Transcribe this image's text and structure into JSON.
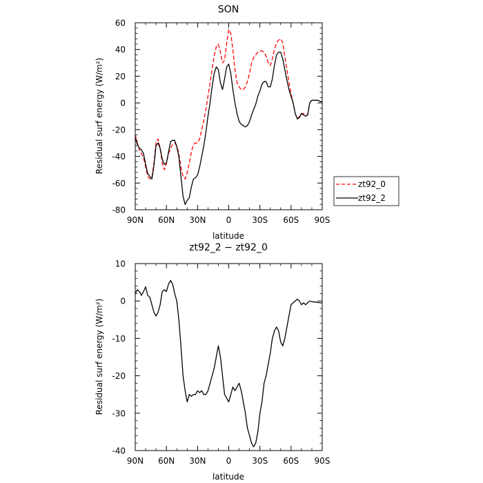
{
  "chart_data": [
    {
      "type": "line",
      "title": "SON",
      "xlabel": "latitude",
      "ylabel": "Residual surf energy (W/m²)",
      "x_ticks": [
        {
          "lat": 90,
          "label": "90N"
        },
        {
          "lat": 60,
          "label": "60N"
        },
        {
          "lat": 30,
          "label": "30N"
        },
        {
          "lat": 0,
          "label": "0"
        },
        {
          "lat": -30,
          "label": "30S"
        },
        {
          "lat": -60,
          "label": "60S"
        },
        {
          "lat": -90,
          "label": "90S"
        }
      ],
      "xlim": [
        90,
        -90
      ],
      "ylim": [
        -80,
        60
      ],
      "y_ticks": [
        60,
        40,
        20,
        0,
        -20,
        -40,
        -60,
        -80
      ],
      "legend_position": "outside-right",
      "series": [
        {
          "name": "zt92_0",
          "color": "#ff0000",
          "dash": "dashed",
          "points": [
            [
              90,
              -24
            ],
            [
              88,
              -30
            ],
            [
              86,
              -35
            ],
            [
              84,
              -38
            ],
            [
              82,
              -41
            ],
            [
              80,
              -48
            ],
            [
              78,
              -55
            ],
            [
              76,
              -57
            ],
            [
              74,
              -56
            ],
            [
              72,
              -45
            ],
            [
              70,
              -30
            ],
            [
              68,
              -27
            ],
            [
              66,
              -34
            ],
            [
              64,
              -45
            ],
            [
              62,
              -50
            ],
            [
              60,
              -45
            ],
            [
              58,
              -38
            ],
            [
              56,
              -34
            ],
            [
              54,
              -31
            ],
            [
              52,
              -30
            ],
            [
              50,
              -32
            ],
            [
              48,
              -38
            ],
            [
              46,
              -48
            ],
            [
              44,
              -55
            ],
            [
              42,
              -57
            ],
            [
              40,
              -52
            ],
            [
              38,
              -45
            ],
            [
              36,
              -37
            ],
            [
              34,
              -31
            ],
            [
              32,
              -30
            ],
            [
              30,
              -30
            ],
            [
              28,
              -27
            ],
            [
              26,
              -20
            ],
            [
              24,
              -13
            ],
            [
              22,
              -5
            ],
            [
              20,
              5
            ],
            [
              18,
              15
            ],
            [
              16,
              25
            ],
            [
              14,
              35
            ],
            [
              12,
              42
            ],
            [
              10,
              44
            ],
            [
              8,
              38
            ],
            [
              6,
              30
            ],
            [
              4,
              32
            ],
            [
              2,
              45
            ],
            [
              0,
              55
            ],
            [
              -2,
              52
            ],
            [
              -4,
              40
            ],
            [
              -6,
              25
            ],
            [
              -8,
              15
            ],
            [
              -10,
              12
            ],
            [
              -12,
              10
            ],
            [
              -14,
              10
            ],
            [
              -16,
              12
            ],
            [
              -18,
              16
            ],
            [
              -20,
              22
            ],
            [
              -22,
              30
            ],
            [
              -24,
              34
            ],
            [
              -26,
              36
            ],
            [
              -28,
              38
            ],
            [
              -30,
              39
            ],
            [
              -32,
              39
            ],
            [
              -34,
              38
            ],
            [
              -36,
              35
            ],
            [
              -38,
              30
            ],
            [
              -40,
              28
            ],
            [
              -42,
              33
            ],
            [
              -44,
              40
            ],
            [
              -46,
              45
            ],
            [
              -48,
              47
            ],
            [
              -50,
              48
            ],
            [
              -52,
              45
            ],
            [
              -54,
              35
            ],
            [
              -56,
              25
            ],
            [
              -58,
              15
            ],
            [
              -60,
              7
            ],
            [
              -62,
              0
            ],
            [
              -64,
              -8
            ],
            [
              -66,
              -12
            ],
            [
              -68,
              -10
            ],
            [
              -70,
              -8
            ],
            [
              -72,
              -8
            ],
            [
              -74,
              -9
            ],
            [
              -76,
              -9
            ],
            [
              -78,
              0
            ],
            [
              -80,
              2
            ],
            [
              -82,
              2
            ],
            [
              -84,
              2
            ],
            [
              -86,
              2
            ],
            [
              -88,
              1
            ],
            [
              -90,
              1
            ]
          ]
        },
        {
          "name": "zt92_2",
          "color": "#000000",
          "dash": "solid",
          "points": [
            [
              90,
              -26
            ],
            [
              88,
              -31
            ],
            [
              86,
              -34
            ],
            [
              84,
              -35
            ],
            [
              82,
              -38
            ],
            [
              80,
              -46
            ],
            [
              78,
              -53
            ],
            [
              76,
              -55
            ],
            [
              74,
              -57
            ],
            [
              72,
              -47
            ],
            [
              70,
              -32
            ],
            [
              68,
              -30
            ],
            [
              66,
              -34
            ],
            [
              64,
              -42
            ],
            [
              62,
              -46
            ],
            [
              60,
              -45
            ],
            [
              58,
              -37
            ],
            [
              56,
              -29
            ],
            [
              54,
              -28
            ],
            [
              52,
              -28
            ],
            [
              50,
              -33
            ],
            [
              48,
              -40
            ],
            [
              46,
              -55
            ],
            [
              44,
              -70
            ],
            [
              42,
              -76
            ],
            [
              40,
              -73
            ],
            [
              38,
              -71
            ],
            [
              36,
              -63
            ],
            [
              34,
              -57
            ],
            [
              32,
              -56
            ],
            [
              30,
              -54
            ],
            [
              28,
              -48
            ],
            [
              26,
              -40
            ],
            [
              24,
              -32
            ],
            [
              22,
              -22
            ],
            [
              20,
              -10
            ],
            [
              18,
              0
            ],
            [
              16,
              12
            ],
            [
              14,
              22
            ],
            [
              12,
              27
            ],
            [
              10,
              25
            ],
            [
              8,
              15
            ],
            [
              6,
              10
            ],
            [
              4,
              18
            ],
            [
              2,
              27
            ],
            [
              0,
              29
            ],
            [
              -2,
              22
            ],
            [
              -4,
              10
            ],
            [
              -6,
              0
            ],
            [
              -8,
              -8
            ],
            [
              -10,
              -14
            ],
            [
              -12,
              -16
            ],
            [
              -14,
              -17
            ],
            [
              -16,
              -18
            ],
            [
              -18,
              -17
            ],
            [
              -20,
              -14
            ],
            [
              -22,
              -9
            ],
            [
              -24,
              -5
            ],
            [
              -26,
              -1
            ],
            [
              -28,
              5
            ],
            [
              -30,
              9
            ],
            [
              -32,
              14
            ],
            [
              -34,
              16
            ],
            [
              -36,
              16
            ],
            [
              -38,
              12
            ],
            [
              -40,
              12
            ],
            [
              -42,
              18
            ],
            [
              -44,
              28
            ],
            [
              -46,
              36
            ],
            [
              -48,
              38
            ],
            [
              -50,
              38
            ],
            [
              -52,
              33
            ],
            [
              -54,
              25
            ],
            [
              -56,
              17
            ],
            [
              -58,
              10
            ],
            [
              -60,
              5
            ],
            [
              -62,
              0
            ],
            [
              -64,
              -8
            ],
            [
              -66,
              -12
            ],
            [
              -68,
              -11
            ],
            [
              -70,
              -8
            ],
            [
              -72,
              -9
            ],
            [
              -74,
              -10
            ],
            [
              -76,
              -9
            ],
            [
              -78,
              0
            ],
            [
              -80,
              2
            ],
            [
              -82,
              2
            ],
            [
              -84,
              2
            ],
            [
              -86,
              2
            ],
            [
              -88,
              1
            ],
            [
              -90,
              1
            ]
          ]
        }
      ]
    },
    {
      "type": "line",
      "title": "zt92_2 − zt92_0",
      "xlabel": "latitude",
      "ylabel": "Residual surf energy (W/m²)",
      "x_ticks": [
        {
          "lat": 90,
          "label": "90N"
        },
        {
          "lat": 60,
          "label": "60N"
        },
        {
          "lat": 30,
          "label": "30N"
        },
        {
          "lat": 0,
          "label": "0"
        },
        {
          "lat": -30,
          "label": "30S"
        },
        {
          "lat": -60,
          "label": "60S"
        },
        {
          "lat": -90,
          "label": "90S"
        }
      ],
      "xlim": [
        90,
        -90
      ],
      "ylim": [
        -40,
        10
      ],
      "y_ticks": [
        10,
        0,
        -10,
        -20,
        -30,
        -40
      ],
      "series": [
        {
          "color": "#000000",
          "dash": "solid",
          "points": [
            [
              90,
              2
            ],
            [
              88,
              3
            ],
            [
              86,
              2.5
            ],
            [
              84,
              1.5
            ],
            [
              82,
              2.5
            ],
            [
              80,
              3.8
            ],
            [
              78,
              1.5
            ],
            [
              76,
              1
            ],
            [
              74,
              -1
            ],
            [
              72,
              -3
            ],
            [
              70,
              -4
            ],
            [
              68,
              -3
            ],
            [
              66,
              -1
            ],
            [
              64,
              2.5
            ],
            [
              62,
              3
            ],
            [
              60,
              2.5
            ],
            [
              58,
              4.5
            ],
            [
              56,
              5.5
            ],
            [
              54,
              4.5
            ],
            [
              52,
              2
            ],
            [
              50,
              0
            ],
            [
              48,
              -5
            ],
            [
              46,
              -12
            ],
            [
              44,
              -20
            ],
            [
              42,
              -24
            ],
            [
              40,
              -27
            ],
            [
              38,
              -25
            ],
            [
              36,
              -25.5
            ],
            [
              34,
              -25
            ],
            [
              32,
              -25
            ],
            [
              30,
              -24
            ],
            [
              28,
              -24.5
            ],
            [
              26,
              -24
            ],
            [
              24,
              -25
            ],
            [
              22,
              -25
            ],
            [
              20,
              -24
            ],
            [
              18,
              -22
            ],
            [
              16,
              -20
            ],
            [
              14,
              -18
            ],
            [
              12,
              -15
            ],
            [
              10,
              -12
            ],
            [
              8,
              -15
            ],
            [
              6,
              -20
            ],
            [
              4,
              -25
            ],
            [
              2,
              -26
            ],
            [
              0,
              -27
            ],
            [
              -2,
              -25
            ],
            [
              -4,
              -23
            ],
            [
              -6,
              -24
            ],
            [
              -8,
              -23
            ],
            [
              -10,
              -22
            ],
            [
              -12,
              -24
            ],
            [
              -14,
              -27
            ],
            [
              -16,
              -30
            ],
            [
              -18,
              -34
            ],
            [
              -20,
              -36
            ],
            [
              -22,
              -38
            ],
            [
              -24,
              -39
            ],
            [
              -26,
              -38
            ],
            [
              -28,
              -35
            ],
            [
              -30,
              -30
            ],
            [
              -32,
              -27
            ],
            [
              -34,
              -22
            ],
            [
              -36,
              -20
            ],
            [
              -38,
              -17
            ],
            [
              -40,
              -14
            ],
            [
              -42,
              -10
            ],
            [
              -44,
              -8
            ],
            [
              -46,
              -7
            ],
            [
              -48,
              -8
            ],
            [
              -50,
              -11
            ],
            [
              -52,
              -12
            ],
            [
              -54,
              -10
            ],
            [
              -56,
              -7
            ],
            [
              -58,
              -4
            ],
            [
              -60,
              -1
            ],
            [
              -62,
              -0.5
            ],
            [
              -64,
              0
            ],
            [
              -66,
              0.5
            ],
            [
              -68,
              0
            ],
            [
              -70,
              -1
            ],
            [
              -72,
              -0.5
            ],
            [
              -74,
              -1
            ],
            [
              -76,
              -0.5
            ],
            [
              -78,
              0
            ],
            [
              -80,
              -0.2
            ],
            [
              -84,
              -0.3
            ],
            [
              -88,
              -0.5
            ],
            [
              -90,
              -0.5
            ]
          ]
        }
      ]
    }
  ]
}
